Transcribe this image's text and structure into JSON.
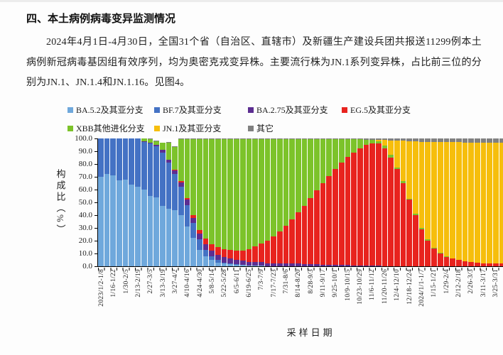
{
  "page": {
    "section_title": "四、本土病例病毒变异监测情况",
    "paragraph": "2024年4月1日-4月30日，全国31个省（自治区、直辖市）及新疆生产建设兵团共报送11299例本土病例新冠病毒基因组有效序列，均为奥密克戎变异株。主要流行株为JN.1系列变异株，占比前三位的分别为JN.1、JN.1.4和JN.1.16。见图4。"
  },
  "chart_data": {
    "type": "bar",
    "stacked": true,
    "title": "",
    "xlabel": "采样日期",
    "ylabel": "构成比（%）",
    "ylim": [
      0,
      100
    ],
    "y_ticks": [
      "100.0",
      "90.0",
      "80.0",
      "70.0",
      "60.0",
      "50.0",
      "40.0",
      "30.0",
      "20.0",
      "10.0",
      "0.0"
    ],
    "legend_position": "top-two-rows",
    "grid": false,
    "categories": [
      "2023/1/2-1/8",
      "",
      "1/16-1/22",
      "",
      "1/30-2/5",
      "",
      "2/13-2/19",
      "",
      "2/27-3/5",
      "",
      "3/13-3/19",
      "",
      "3/27-4/2",
      "",
      "4/10-4/16",
      "",
      "4/24-4/30",
      "",
      "5/8-5/14",
      "",
      "5/22-5/28",
      "",
      "6/5-6/11",
      "",
      "6/19-6/25",
      "",
      "7/3-7/9",
      "",
      "7/17-7/23",
      "",
      "7/31-8/6",
      "",
      "8/14-8/20",
      "",
      "8/28-9/3",
      "",
      "9/11-9/17",
      "",
      "9/25-10/1",
      "",
      "10/9-10/15",
      "",
      "10/23-10/29",
      "",
      "11/6-11/12",
      "",
      "11/20-11/26",
      "",
      "12/4-12/10",
      "",
      "12/18-12/24",
      "",
      "2024/1/1-1/7",
      "",
      "1/15-1/21",
      "",
      "1/29-2/4",
      "",
      "2/12-2/18",
      "",
      "2/26-3/3",
      "",
      "3/11-3/17",
      "",
      "3/25-3/31",
      "",
      "4/8-4/14",
      "",
      "4/22-4/28"
    ],
    "series": [
      {
        "name": "BA.5.2及其亚分支",
        "color": "#6FA8DC",
        "values": [
          70,
          72,
          71,
          67,
          68,
          64,
          62,
          60,
          55,
          54,
          47,
          45,
          44,
          40,
          31,
          22,
          13,
          8,
          5,
          3,
          2,
          1.5,
          1,
          1,
          0.5,
          0.5,
          0.5,
          0,
          0,
          0,
          0,
          0,
          0,
          0,
          0,
          0,
          0,
          0,
          0,
          0,
          0,
          0,
          0,
          0,
          0,
          0,
          0,
          0,
          0,
          0,
          0,
          0,
          0,
          0,
          0,
          0,
          0,
          0,
          0,
          0,
          0,
          0,
          0,
          0,
          0,
          0,
          0,
          0,
          0
        ]
      },
      {
        "name": "BF.7及其亚分支",
        "color": "#4472C4",
        "values": [
          30,
          28,
          29,
          33,
          32,
          36,
          38,
          37.5,
          41,
          40,
          42,
          36,
          28,
          22,
          17,
          12,
          8,
          5,
          3,
          2,
          1,
          0.5,
          0.5,
          0,
          0,
          0,
          0,
          0,
          0,
          0,
          0,
          0,
          0,
          0,
          0,
          0,
          0,
          0,
          0,
          0,
          0,
          0,
          0,
          0,
          0,
          0,
          0,
          0,
          0,
          0,
          0,
          0,
          0,
          0,
          0,
          0,
          0,
          0,
          0,
          0,
          0,
          0,
          0,
          0,
          0,
          0,
          0,
          0,
          0
        ]
      },
      {
        "name": "BA.2.75及其亚分支",
        "color": "#5C2E91",
        "values": [
          0,
          0,
          0,
          0,
          0,
          0,
          0,
          0.5,
          0.5,
          1,
          2,
          2.5,
          3,
          3.5,
          4,
          4,
          4.5,
          4.5,
          4.5,
          4,
          4,
          4,
          3.5,
          3.5,
          3,
          3,
          3,
          2.5,
          2.5,
          2.5,
          2,
          2,
          2,
          1.5,
          1.5,
          1.5,
          1,
          1,
          1,
          1,
          1,
          0.5,
          0.5,
          0.5,
          0.5,
          0.5,
          0,
          0,
          0,
          0,
          0,
          0,
          0,
          0,
          0,
          0,
          0,
          0,
          0,
          0,
          0,
          0,
          0,
          0,
          0,
          0,
          0,
          0,
          0
        ]
      },
      {
        "name": "EG.5及其亚分支",
        "color": "#E8231E",
        "values": [
          0,
          0,
          0,
          0,
          0,
          0,
          0,
          0,
          0,
          0,
          0,
          0,
          0.5,
          1,
          1.5,
          2,
          3,
          4,
          5,
          6,
          6.5,
          7,
          7.5,
          8,
          10,
          12,
          14.5,
          17.5,
          21,
          25,
          29.5,
          34.5,
          40,
          46,
          52,
          58,
          64,
          69.5,
          75,
          80,
          84.5,
          88.5,
          92,
          94.5,
          95.5,
          95.5,
          92.5,
          85,
          76,
          65,
          52,
          40,
          29,
          20,
          14,
          10,
          7.5,
          6,
          5,
          4,
          3.5,
          3,
          2.5,
          2.5,
          2,
          2,
          1.5,
          1.5,
          1.5
        ]
      },
      {
        "name": "XBB其他进化分支",
        "color": "#7CC32A",
        "values": [
          0,
          0,
          0,
          0,
          0,
          0,
          0,
          2,
          3,
          3,
          5.5,
          13,
          18,
          33,
          46,
          59.5,
          71,
          78,
          82,
          84.5,
          86,
          86.5,
          87,
          87,
          86,
          84,
          81.5,
          79.5,
          76,
          72,
          68,
          63,
          57.5,
          52,
          46,
          40,
          34.5,
          29,
          23.5,
          18.5,
          14,
          10.5,
          7,
          4,
          3,
          2,
          2,
          2,
          1.5,
          1.5,
          1,
          1,
          1,
          1,
          0.5,
          0.5,
          0.5,
          0,
          0,
          0,
          0,
          0,
          0,
          0,
          0,
          0,
          0,
          0,
          0
        ]
      },
      {
        "name": "JN.1及其亚分支",
        "color": "#F6BE0C",
        "values": [
          0,
          0,
          0,
          0,
          0,
          0,
          0,
          0,
          0,
          0,
          0,
          0,
          0,
          0,
          0,
          0,
          0,
          0,
          0,
          0,
          0,
          0,
          0,
          0,
          0,
          0,
          0,
          0,
          0,
          0,
          0,
          0,
          0,
          0,
          0,
          0,
          0,
          0,
          0,
          0,
          0,
          0,
          0,
          0,
          0,
          1,
          4.5,
          11.5,
          21,
          32,
          45,
          57,
          67.5,
          76.5,
          82.5,
          86.5,
          89,
          91,
          92,
          92.5,
          93,
          93.5,
          94,
          94,
          94.5,
          94.5,
          95,
          94.5,
          94.5
        ]
      },
      {
        "name": "其它",
        "color": "#808080",
        "values": [
          0,
          0,
          0,
          0,
          0,
          0,
          0,
          0,
          0.5,
          0.5,
          0.5,
          0.5,
          0.5,
          0.5,
          0.5,
          0.5,
          0.5,
          0.5,
          0.5,
          0.5,
          0.5,
          0.5,
          0.5,
          0.5,
          0.5,
          0.5,
          0.5,
          0.5,
          0.5,
          0.5,
          0.5,
          0.5,
          0.5,
          0.5,
          0.5,
          0.5,
          0.5,
          0.5,
          0.5,
          0.5,
          0.5,
          0.5,
          0.5,
          1,
          1,
          1,
          1,
          1.5,
          1.5,
          1.5,
          2,
          2,
          2.5,
          2.5,
          3,
          3,
          3,
          3,
          3,
          3.5,
          3.5,
          3.5,
          3.5,
          3.5,
          3.5,
          3.5,
          3.5,
          4,
          4
        ]
      }
    ]
  }
}
